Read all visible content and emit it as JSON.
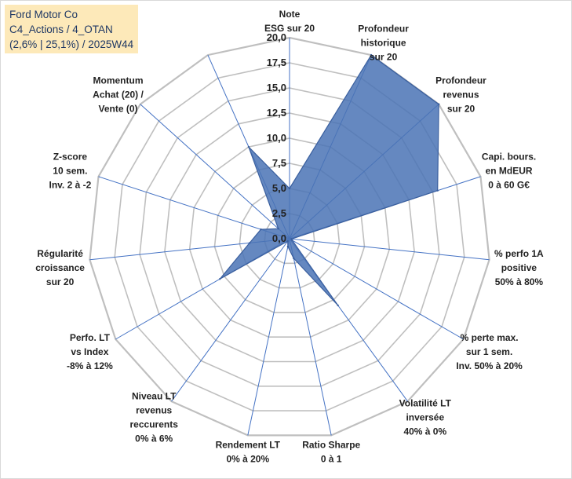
{
  "info": {
    "line1": "Ford Motor Co",
    "line2": "C4_Actions / 4_OTAN",
    "line3": "(2,6% | 25,1%) / 2025W44"
  },
  "colors": {
    "fill": "#4a73b5",
    "stroke": "#3a5f9e",
    "grid": "#bfbfbf",
    "spoke": "#4472c4",
    "info_bg": "#fde9b9"
  },
  "chart_data": {
    "type": "radar",
    "title": "",
    "rmin": 0,
    "rmax": 20,
    "ticks": [
      "0,0",
      "2,5",
      "5,0",
      "7,5",
      "10,0",
      "12,5",
      "15,0",
      "17,5",
      "20,0"
    ],
    "axes": [
      {
        "label": [
          "Note",
          "ESG sur 20"
        ],
        "value": 5.0
      },
      {
        "label": [
          "Profondeur",
          "historique",
          "sur 20"
        ],
        "value": 20.0
      },
      {
        "label": [
          "Profondeur",
          "revenus",
          "sur 20"
        ],
        "value": 20.0
      },
      {
        "label": [
          "Capi. bours.",
          "en MdEUR",
          "0 à 60 G€"
        ],
        "value": 15.5
      },
      {
        "label": [
          "% perfo 1A",
          "positive",
          "50% à 80%"
        ],
        "value": 0.2
      },
      {
        "label": [
          "% perte max.",
          "sur 1 sem.",
          "Inv. 50% à 20%"
        ],
        "value": 0.3
      },
      {
        "label": [
          "Volatilité LT",
          "inversée",
          "40% à 0%"
        ],
        "value": 8.2
      },
      {
        "label": [
          "Ratio Sharpe",
          "0 à 1"
        ],
        "value": 2.0
      },
      {
        "label": [
          "Rendement LT",
          "0% à 20%"
        ],
        "value": 0.8
      },
      {
        "label": [
          "Niveau LT",
          "revenus",
          "reccurents",
          "0% à 6%"
        ],
        "value": 0.3
      },
      {
        "label": [
          "Perfo. LT",
          "vs Index",
          "-8% à 12%"
        ],
        "value": 8.0
      },
      {
        "label": [
          "Régularité",
          "croissance",
          "sur 20"
        ],
        "value": 4.0
      },
      {
        "label": [
          "Z-score",
          "10 sem.",
          "Inv. 2 à -2"
        ],
        "value": 3.0
      },
      {
        "label": [
          "Momentum",
          "Achat (20) /",
          "Vente (0)"
        ],
        "value": 1.5
      },
      {
        "label": [
          "",
          ""
        ],
        "value": 10.0
      }
    ]
  }
}
